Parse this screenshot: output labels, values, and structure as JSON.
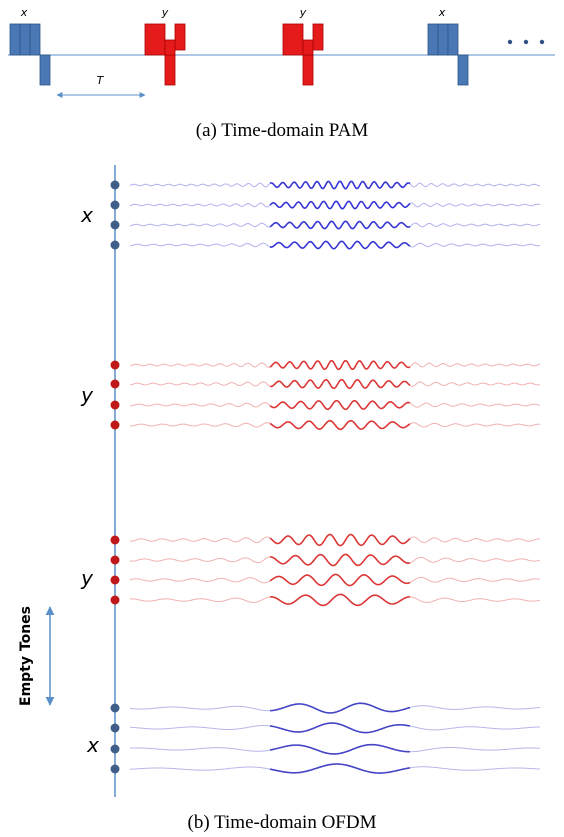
{
  "pam": {
    "pulse_labels": [
      "x",
      "y",
      "y",
      "x"
    ],
    "period_label": "T",
    "caption": "(a) Time-domain PAM"
  },
  "ofdm": {
    "group_labels": [
      "x",
      "y",
      "y",
      "x"
    ],
    "gap_label": "Empty Tones",
    "caption": "(b) Time-domain OFDM"
  }
}
